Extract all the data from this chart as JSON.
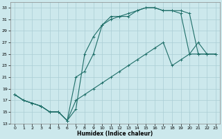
{
  "xlabel": "Humidex (Indice chaleur)",
  "bg_color": "#cce8ec",
  "grid_color": "#aacdd4",
  "line_color": "#1e6e68",
  "xlim": [
    -0.5,
    23.5
  ],
  "ylim": [
    13,
    34
  ],
  "xticks": [
    0,
    1,
    2,
    3,
    4,
    5,
    6,
    7,
    8,
    9,
    10,
    11,
    12,
    13,
    14,
    15,
    16,
    17,
    18,
    19,
    20,
    21,
    22,
    23
  ],
  "yticks": [
    13,
    15,
    17,
    19,
    21,
    23,
    25,
    27,
    29,
    31,
    33
  ],
  "line1_x": [
    0,
    1,
    2,
    3,
    4,
    5,
    6,
    7,
    8,
    9,
    10,
    11,
    12,
    13,
    14,
    15,
    16,
    17,
    18,
    19,
    20,
    21,
    22,
    23
  ],
  "line1_y": [
    18,
    17,
    16.5,
    16,
    15,
    15,
    13.5,
    15.5,
    25,
    28,
    30,
    31.5,
    31.5,
    32,
    32.5,
    33,
    33,
    32.5,
    32.5,
    32,
    25,
    27,
    25,
    25
  ],
  "line2_x": [
    0,
    1,
    2,
    3,
    4,
    5,
    6,
    7,
    8,
    9,
    10,
    11,
    12,
    13,
    14,
    15,
    16,
    17,
    18,
    19,
    20,
    21,
    22,
    23
  ],
  "line2_y": [
    18,
    17,
    16.5,
    16,
    15,
    15,
    13.5,
    21,
    22,
    25,
    30,
    31,
    31.5,
    31.5,
    32.5,
    33,
    33,
    32.5,
    32.5,
    32.5,
    32,
    25,
    25,
    25
  ],
  "line3_x": [
    0,
    1,
    2,
    3,
    4,
    5,
    6,
    7,
    8,
    9,
    10,
    11,
    12,
    13,
    14,
    15,
    16,
    17,
    18,
    19,
    20,
    21,
    22,
    23
  ],
  "line3_y": [
    18,
    17,
    16.5,
    16,
    15,
    15,
    13.5,
    17,
    18,
    19,
    20,
    21,
    22,
    23,
    24,
    25,
    26,
    27,
    23,
    24,
    25,
    25,
    25,
    25
  ]
}
